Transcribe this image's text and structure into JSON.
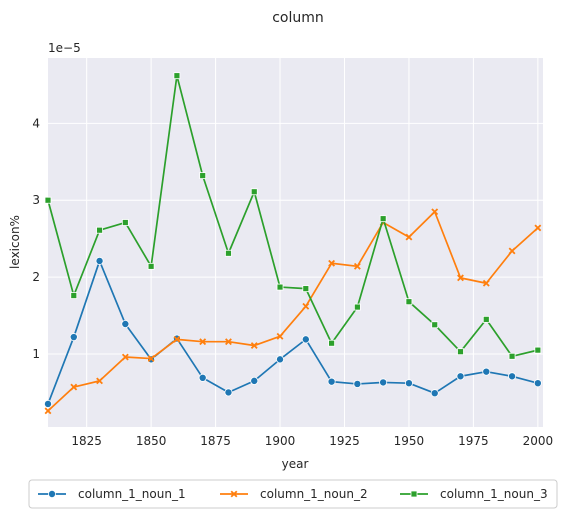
{
  "chart_data": {
    "type": "line",
    "title": "column",
    "xlabel": "year",
    "ylabel": "lexicon%",
    "y_scale_label": "1e−5",
    "xlim": [
      1810,
      2002
    ],
    "ylim": [
      0.05,
      4.85
    ],
    "x_ticks": [
      1825,
      1850,
      1875,
      1900,
      1925,
      1950,
      1975,
      2000
    ],
    "y_ticks": [
      1,
      2,
      3,
      4
    ],
    "grid": true,
    "legend_position": "bottom",
    "x": [
      1810,
      1820,
      1830,
      1840,
      1850,
      1860,
      1870,
      1880,
      1890,
      1900,
      1910,
      1920,
      1930,
      1940,
      1950,
      1960,
      1970,
      1980,
      1990,
      2000
    ],
    "series": [
      {
        "name": "column_1_noun_1",
        "color": "#1f77b4",
        "marker": "circle",
        "values": [
          0.35,
          1.22,
          2.21,
          1.39,
          0.93,
          1.2,
          0.69,
          0.5,
          0.65,
          0.93,
          1.19,
          0.64,
          0.61,
          0.63,
          0.62,
          0.49,
          0.71,
          0.77,
          0.71,
          0.62
        ]
      },
      {
        "name": "column_1_noun_2",
        "color": "#ff7f0e",
        "marker": "x",
        "values": [
          0.26,
          0.57,
          0.65,
          0.96,
          0.94,
          1.19,
          1.16,
          1.16,
          1.11,
          1.23,
          1.62,
          2.18,
          2.14,
          2.71,
          2.52,
          2.85,
          1.99,
          1.92,
          2.34,
          2.64
        ]
      },
      {
        "name": "column_1_noun_3",
        "color": "#2ca02c",
        "marker": "square",
        "values": [
          3.0,
          1.76,
          2.61,
          2.71,
          2.14,
          4.62,
          3.32,
          2.31,
          3.11,
          1.87,
          1.85,
          1.14,
          1.61,
          2.76,
          1.68,
          1.38,
          1.03,
          1.45,
          0.97,
          1.05
        ]
      }
    ]
  }
}
